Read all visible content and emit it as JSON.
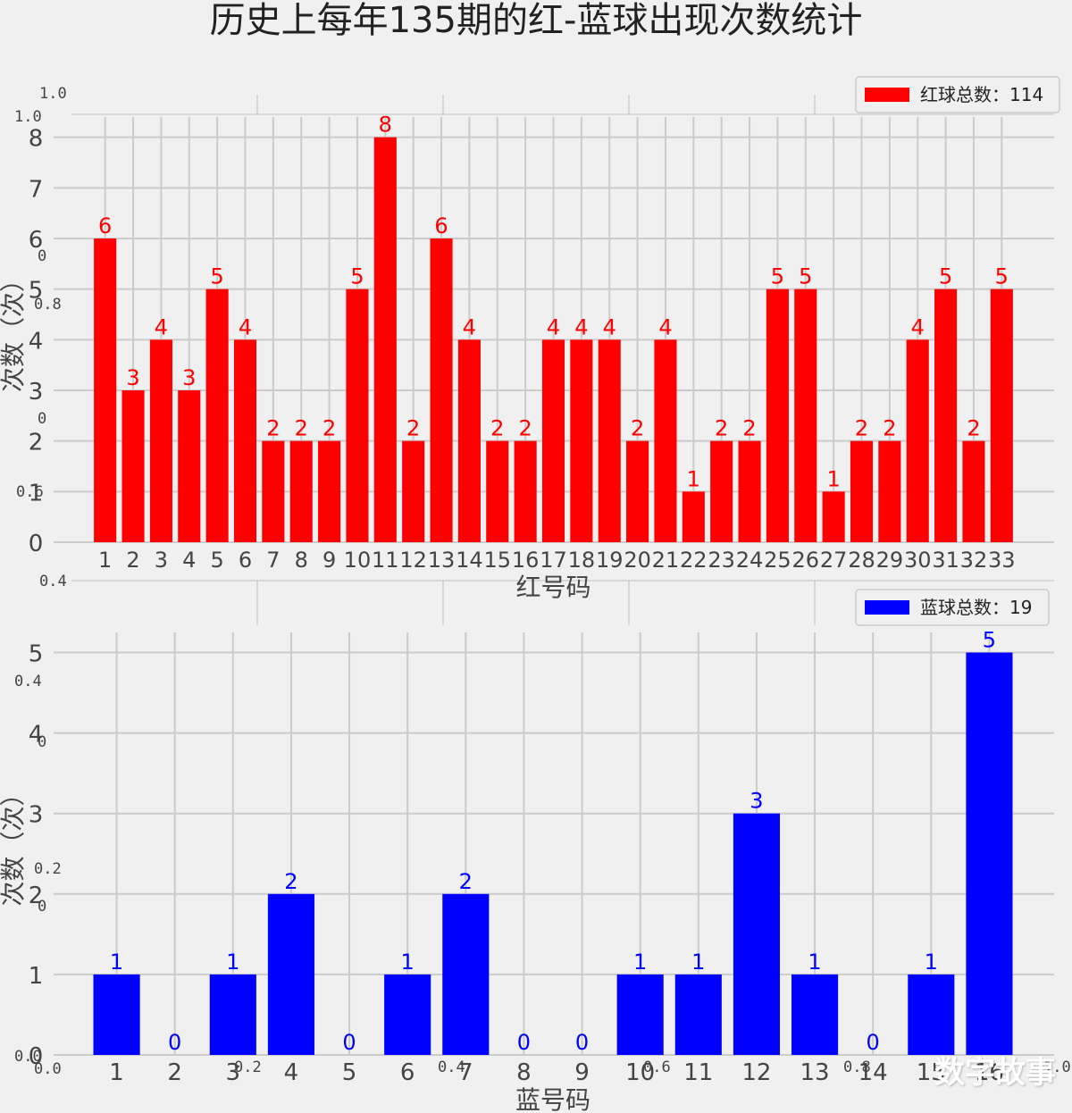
{
  "title": "历史上每年135期的红-蓝球出现次数统计",
  "watermark": "数字故事",
  "ghost_labels": [
    "1.0",
    "1.0",
    "0",
    "0.8",
    "0",
    "0.6",
    "0.4",
    "0.4",
    "0",
    "0.2",
    "0",
    "0.0",
    "0.0",
    "0.2",
    "0.4",
    "0.6",
    "0.8",
    "1.0"
  ],
  "chart_data": [
    {
      "type": "bar",
      "color": "#ff0000",
      "legend": "红球总数：114",
      "legend_position": "top-right",
      "xlabel": "红号码",
      "ylabel": "次数（次）",
      "ylim": [
        0,
        8.4
      ],
      "yticks": [
        "0",
        "1",
        "2",
        "3",
        "4",
        "5",
        "6",
        "7",
        "8"
      ],
      "grid": true,
      "categories": [
        "1",
        "2",
        "3",
        "4",
        "5",
        "6",
        "7",
        "8",
        "9",
        "10",
        "11",
        "12",
        "13",
        "14",
        "15",
        "16",
        "17",
        "18",
        "19",
        "20",
        "21",
        "22",
        "23",
        "24",
        "25",
        "26",
        "27",
        "28",
        "29",
        "30",
        "31",
        "32",
        "33"
      ],
      "values": [
        6,
        3,
        4,
        3,
        5,
        4,
        2,
        2,
        2,
        5,
        8,
        2,
        6,
        4,
        2,
        2,
        4,
        4,
        4,
        2,
        4,
        1,
        2,
        2,
        5,
        5,
        1,
        2,
        2,
        4,
        5,
        2,
        5
      ],
      "labels": [
        "6",
        "3",
        "4",
        "3",
        "5",
        "4",
        "2",
        "2",
        "2",
        "5",
        "8",
        "2",
        "6",
        "4",
        "2",
        "2",
        "4",
        "4",
        "4",
        "2",
        "4",
        "1",
        "2",
        "2",
        "5",
        "5",
        "1",
        "2",
        "2",
        "4",
        "5",
        "2",
        "5"
      ]
    },
    {
      "type": "bar",
      "color": "#0000ff",
      "legend": "蓝球总数：19",
      "legend_position": "top-right",
      "xlabel": "蓝号码",
      "ylabel": "次数（次）",
      "ylim": [
        0,
        5.25
      ],
      "yticks": [
        "0",
        "1",
        "2",
        "3",
        "4",
        "5"
      ],
      "grid": true,
      "categories": [
        "1",
        "2",
        "3",
        "4",
        "5",
        "6",
        "7",
        "8",
        "9",
        "10",
        "11",
        "12",
        "13",
        "14",
        "15",
        "16"
      ],
      "values": [
        1,
        0,
        1,
        2,
        0,
        1,
        2,
        0,
        0,
        1,
        1,
        3,
        1,
        0,
        1,
        5
      ],
      "labels": [
        "1",
        "0",
        "1",
        "2",
        "0",
        "1",
        "2",
        "0",
        "0",
        "1",
        "1",
        "3",
        "1",
        "0",
        "1",
        "5"
      ]
    }
  ]
}
